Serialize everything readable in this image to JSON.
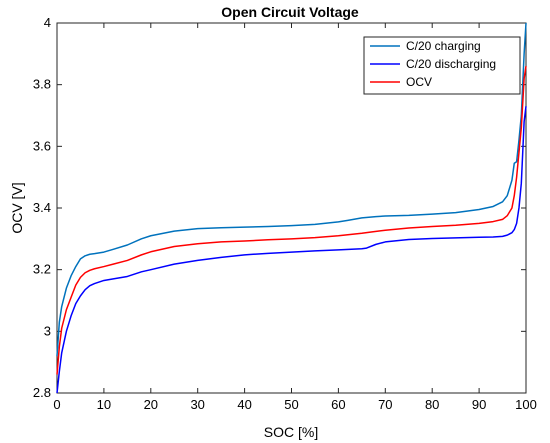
{
  "chart_data": {
    "type": "line",
    "title": "Open Circuit Voltage",
    "xlabel": "SOC [%]",
    "ylabel": "OCV [V]",
    "xlim": [
      0,
      100
    ],
    "ylim": [
      2.8,
      4.0
    ],
    "xticks": [
      0,
      10,
      20,
      30,
      40,
      50,
      60,
      70,
      80,
      90,
      100
    ],
    "yticks": [
      2.8,
      3.0,
      3.2,
      3.4,
      3.6,
      3.8,
      4.0
    ],
    "xtick_labels": [
      "0",
      "10",
      "20",
      "30",
      "40",
      "50",
      "60",
      "70",
      "80",
      "90",
      "100"
    ],
    "ytick_labels": [
      "2.8",
      "3",
      "3.2",
      "3.4",
      "3.6",
      "3.8",
      "4"
    ],
    "grid": false,
    "legend_position": "top-right",
    "series": [
      {
        "name": "C/20 charging",
        "color": "#0072BD",
        "x": [
          0,
          0.5,
          1,
          2,
          3,
          4,
          5,
          6,
          7,
          8,
          10,
          12,
          15,
          18,
          20,
          25,
          30,
          35,
          40,
          45,
          50,
          55,
          60,
          62,
          65,
          68,
          70,
          75,
          80,
          85,
          90,
          93,
          95,
          96,
          97,
          97.5,
          98,
          98.5,
          99,
          99.3,
          99.6,
          100
        ],
        "y": [
          2.92,
          3.03,
          3.08,
          3.14,
          3.18,
          3.21,
          3.235,
          3.245,
          3.25,
          3.252,
          3.257,
          3.266,
          3.28,
          3.3,
          3.31,
          3.325,
          3.333,
          3.336,
          3.338,
          3.34,
          3.343,
          3.347,
          3.355,
          3.36,
          3.368,
          3.372,
          3.374,
          3.376,
          3.38,
          3.385,
          3.395,
          3.405,
          3.42,
          3.44,
          3.49,
          3.545,
          3.55,
          3.62,
          3.7,
          3.8,
          3.9,
          4.0
        ]
      },
      {
        "name": "C/20 discharging",
        "color": "#0000FF",
        "x": [
          0,
          0.5,
          1,
          2,
          3,
          4,
          5,
          6,
          7,
          8,
          10,
          12,
          15,
          18,
          20,
          25,
          30,
          35,
          40,
          45,
          50,
          55,
          60,
          65,
          66,
          68,
          70,
          75,
          80,
          85,
          90,
          93,
          95,
          96,
          97,
          97.5,
          98,
          98.5,
          99,
          99.3,
          99.6,
          100
        ],
        "y": [
          2.8,
          2.87,
          2.93,
          3.0,
          3.05,
          3.09,
          3.115,
          3.135,
          3.148,
          3.155,
          3.165,
          3.17,
          3.178,
          3.193,
          3.2,
          3.218,
          3.23,
          3.24,
          3.248,
          3.253,
          3.257,
          3.261,
          3.264,
          3.268,
          3.27,
          3.282,
          3.29,
          3.298,
          3.301,
          3.303,
          3.305,
          3.306,
          3.308,
          3.312,
          3.32,
          3.33,
          3.35,
          3.4,
          3.48,
          3.58,
          3.68,
          3.73
        ]
      },
      {
        "name": "OCV",
        "color": "#FF0000",
        "x": [
          0,
          0.5,
          1,
          2,
          3,
          4,
          5,
          6,
          7,
          8,
          10,
          12,
          15,
          18,
          20,
          25,
          30,
          35,
          40,
          45,
          50,
          55,
          60,
          65,
          67,
          70,
          75,
          80,
          85,
          90,
          93,
          95,
          96,
          97,
          97.5,
          98,
          98.5,
          99,
          99.3,
          99.6,
          100
        ],
        "y": [
          2.86,
          2.95,
          3.01,
          3.07,
          3.11,
          3.15,
          3.175,
          3.19,
          3.198,
          3.203,
          3.21,
          3.218,
          3.23,
          3.248,
          3.258,
          3.275,
          3.284,
          3.29,
          3.293,
          3.297,
          3.3,
          3.304,
          3.31,
          3.318,
          3.322,
          3.328,
          3.335,
          3.34,
          3.344,
          3.35,
          3.356,
          3.363,
          3.375,
          3.4,
          3.44,
          3.5,
          3.58,
          3.66,
          3.74,
          3.82,
          3.86
        ]
      }
    ]
  }
}
